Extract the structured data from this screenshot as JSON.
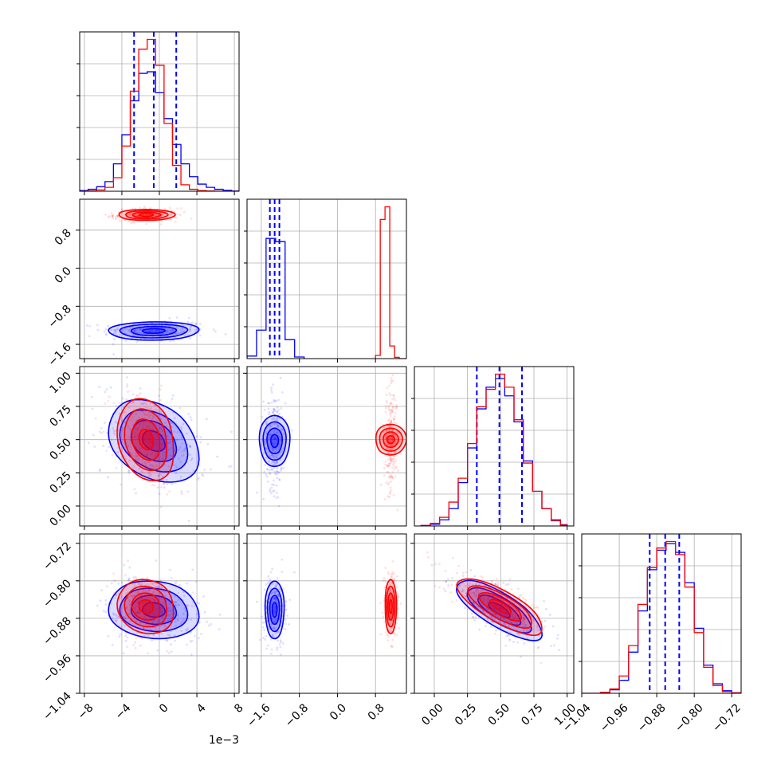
{
  "colors": {
    "series_a": "#0000ff",
    "series_b": "#ff0000",
    "grid": "#b0b0b0",
    "axis": "#000000"
  },
  "chart_data": {
    "type": "corner",
    "grid": true,
    "parameters": [
      {
        "range": [
          -8.5,
          8.5
        ],
        "scale_exponent_label": "1e−3",
        "ticks": [
          -8,
          -4,
          0,
          4,
          8
        ],
        "tick_labels": [
          "−8",
          "−4",
          "0",
          "4",
          "8"
        ]
      },
      {
        "range": [
          -1.9,
          1.45
        ],
        "ticks": [
          -1.6,
          -0.8,
          0.0,
          0.8
        ],
        "tick_labels": [
          "−1.6",
          "−0.8",
          "0.0",
          "0.8"
        ]
      },
      {
        "range": [
          -0.15,
          1.05
        ],
        "ticks": [
          0.0,
          0.25,
          0.5,
          0.75,
          1.0
        ],
        "tick_labels": [
          "0.00",
          "0.25",
          "0.50",
          "0.75",
          "1.00"
        ]
      },
      {
        "range": [
          -1.04,
          -0.7
        ],
        "ticks": [
          -1.04,
          -0.96,
          -0.88,
          -0.8,
          -0.72
        ],
        "tick_labels": [
          "−1.04",
          "−0.96",
          "−0.88",
          "−0.80",
          "−0.72"
        ]
      }
    ],
    "series": [
      {
        "color": "#0000ff",
        "quantiles": [
          [
            -2.7,
            -0.6,
            1.8
          ],
          [
            -1.42,
            -1.32,
            -1.22
          ],
          [
            0.32,
            0.49,
            0.66
          ],
          [
            -0.895,
            -0.862,
            -0.832
          ]
        ],
        "histograms": [
          {
            "bins": [
              -8.5,
              -7.6,
              -6.7,
              -5.8,
              -4.9,
              -4.0,
              -3.1,
              -2.2,
              -1.3,
              -0.4,
              0.5,
              1.4,
              2.3,
              3.2,
              4.1,
              5.0,
              5.9,
              6.8,
              7.7,
              8.5
            ],
            "counts": [
              2,
              6,
              14,
              30,
              85,
              175,
              280,
              365,
              370,
              305,
              225,
              145,
              85,
              45,
              22,
              12,
              6,
              3,
              1
            ]
          },
          {
            "bins": [
              -1.9,
              -1.7,
              -1.5,
              -1.3,
              -1.1,
              -0.9,
              -0.7
            ],
            "counts": [
              8,
              90,
              380,
              370,
              60,
              5
            ]
          },
          {
            "bins": [
              -0.1,
              -0.03,
              0.04,
              0.11,
              0.18,
              0.25,
              0.32,
              0.39,
              0.46,
              0.53,
              0.6,
              0.67,
              0.74,
              0.81,
              0.88,
              0.95,
              1.0
            ],
            "counts": [
              1,
              4,
              14,
              40,
              100,
              180,
              270,
              320,
              340,
              300,
              240,
              150,
              80,
              40,
              14,
              3
            ]
          },
          {
            "bins": [
              -1.04,
              -1.0,
              -0.98,
              -0.96,
              -0.94,
              -0.92,
              -0.9,
              -0.88,
              -0.86,
              -0.84,
              -0.82,
              -0.8,
              -0.78,
              -0.76,
              -0.74,
              -0.72,
              -0.7
            ],
            "counts": [
              0,
              2,
              8,
              30,
              95,
              190,
              285,
              330,
              345,
              325,
              255,
              150,
              65,
              22,
              6,
              1
            ]
          }
        ],
        "means": [
          -0.6,
          -1.32,
          0.49,
          -0.862
        ],
        "sigmas": [
          2.4,
          0.1,
          0.16,
          0.032
        ],
        "correlations": {
          "1-0": 0.05,
          "2-0": -0.3,
          "2-1": 0.0,
          "3-0": -0.1,
          "3-1": 0.0,
          "3-2": -0.75
        }
      },
      {
        "color": "#ff0000",
        "histograms": [
          {
            "bins": [
              -8.5,
              -7.6,
              -6.7,
              -5.8,
              -4.9,
              -4.0,
              -3.1,
              -2.2,
              -1.3,
              -0.4,
              0.5,
              1.4,
              2.3,
              3.2,
              4.1,
              5.0,
              5.9,
              6.8,
              7.7,
              8.5
            ],
            "counts": [
              0,
              1,
              4,
              12,
              42,
              140,
              310,
              440,
              470,
              390,
              210,
              80,
              20,
              6,
              2,
              1,
              0,
              0,
              0
            ]
          },
          {
            "bins": [
              0.8,
              0.9,
              1.0,
              1.1,
              1.2,
              1.3,
              1.45
            ],
            "counts": [
              10,
              440,
              480,
              40,
              4,
              0
            ]
          },
          {
            "bins": [
              -0.1,
              -0.03,
              0.04,
              0.11,
              0.18,
              0.25,
              0.32,
              0.39,
              0.46,
              0.53,
              0.6,
              0.67,
              0.74,
              0.81,
              0.88,
              0.95,
              1.0
            ],
            "counts": [
              1,
              6,
              20,
              55,
              110,
              190,
              275,
              315,
              350,
              320,
              245,
              145,
              80,
              40,
              12,
              2
            ]
          },
          {
            "bins": [
              -1.04,
              -1.0,
              -0.98,
              -0.96,
              -0.94,
              -0.92,
              -0.9,
              -0.88,
              -0.86,
              -0.84,
              -0.82,
              -0.8,
              -0.78,
              -0.76,
              -0.74,
              -0.72,
              -0.7
            ],
            "counts": [
              0,
              2,
              10,
              40,
              110,
              205,
              290,
              335,
              350,
              320,
              245,
              140,
              60,
              18,
              4,
              1
            ]
          }
        ],
        "means": [
          -1.4,
          1.12,
          0.5,
          -0.855
        ],
        "sigmas": [
          1.5,
          0.06,
          0.16,
          0.03
        ],
        "correlations": {
          "1-0": 0.0,
          "2-0": -0.2,
          "2-1": 0.0,
          "3-0": -0.1,
          "3-1": 0.0,
          "3-2": -0.75
        }
      }
    ]
  }
}
